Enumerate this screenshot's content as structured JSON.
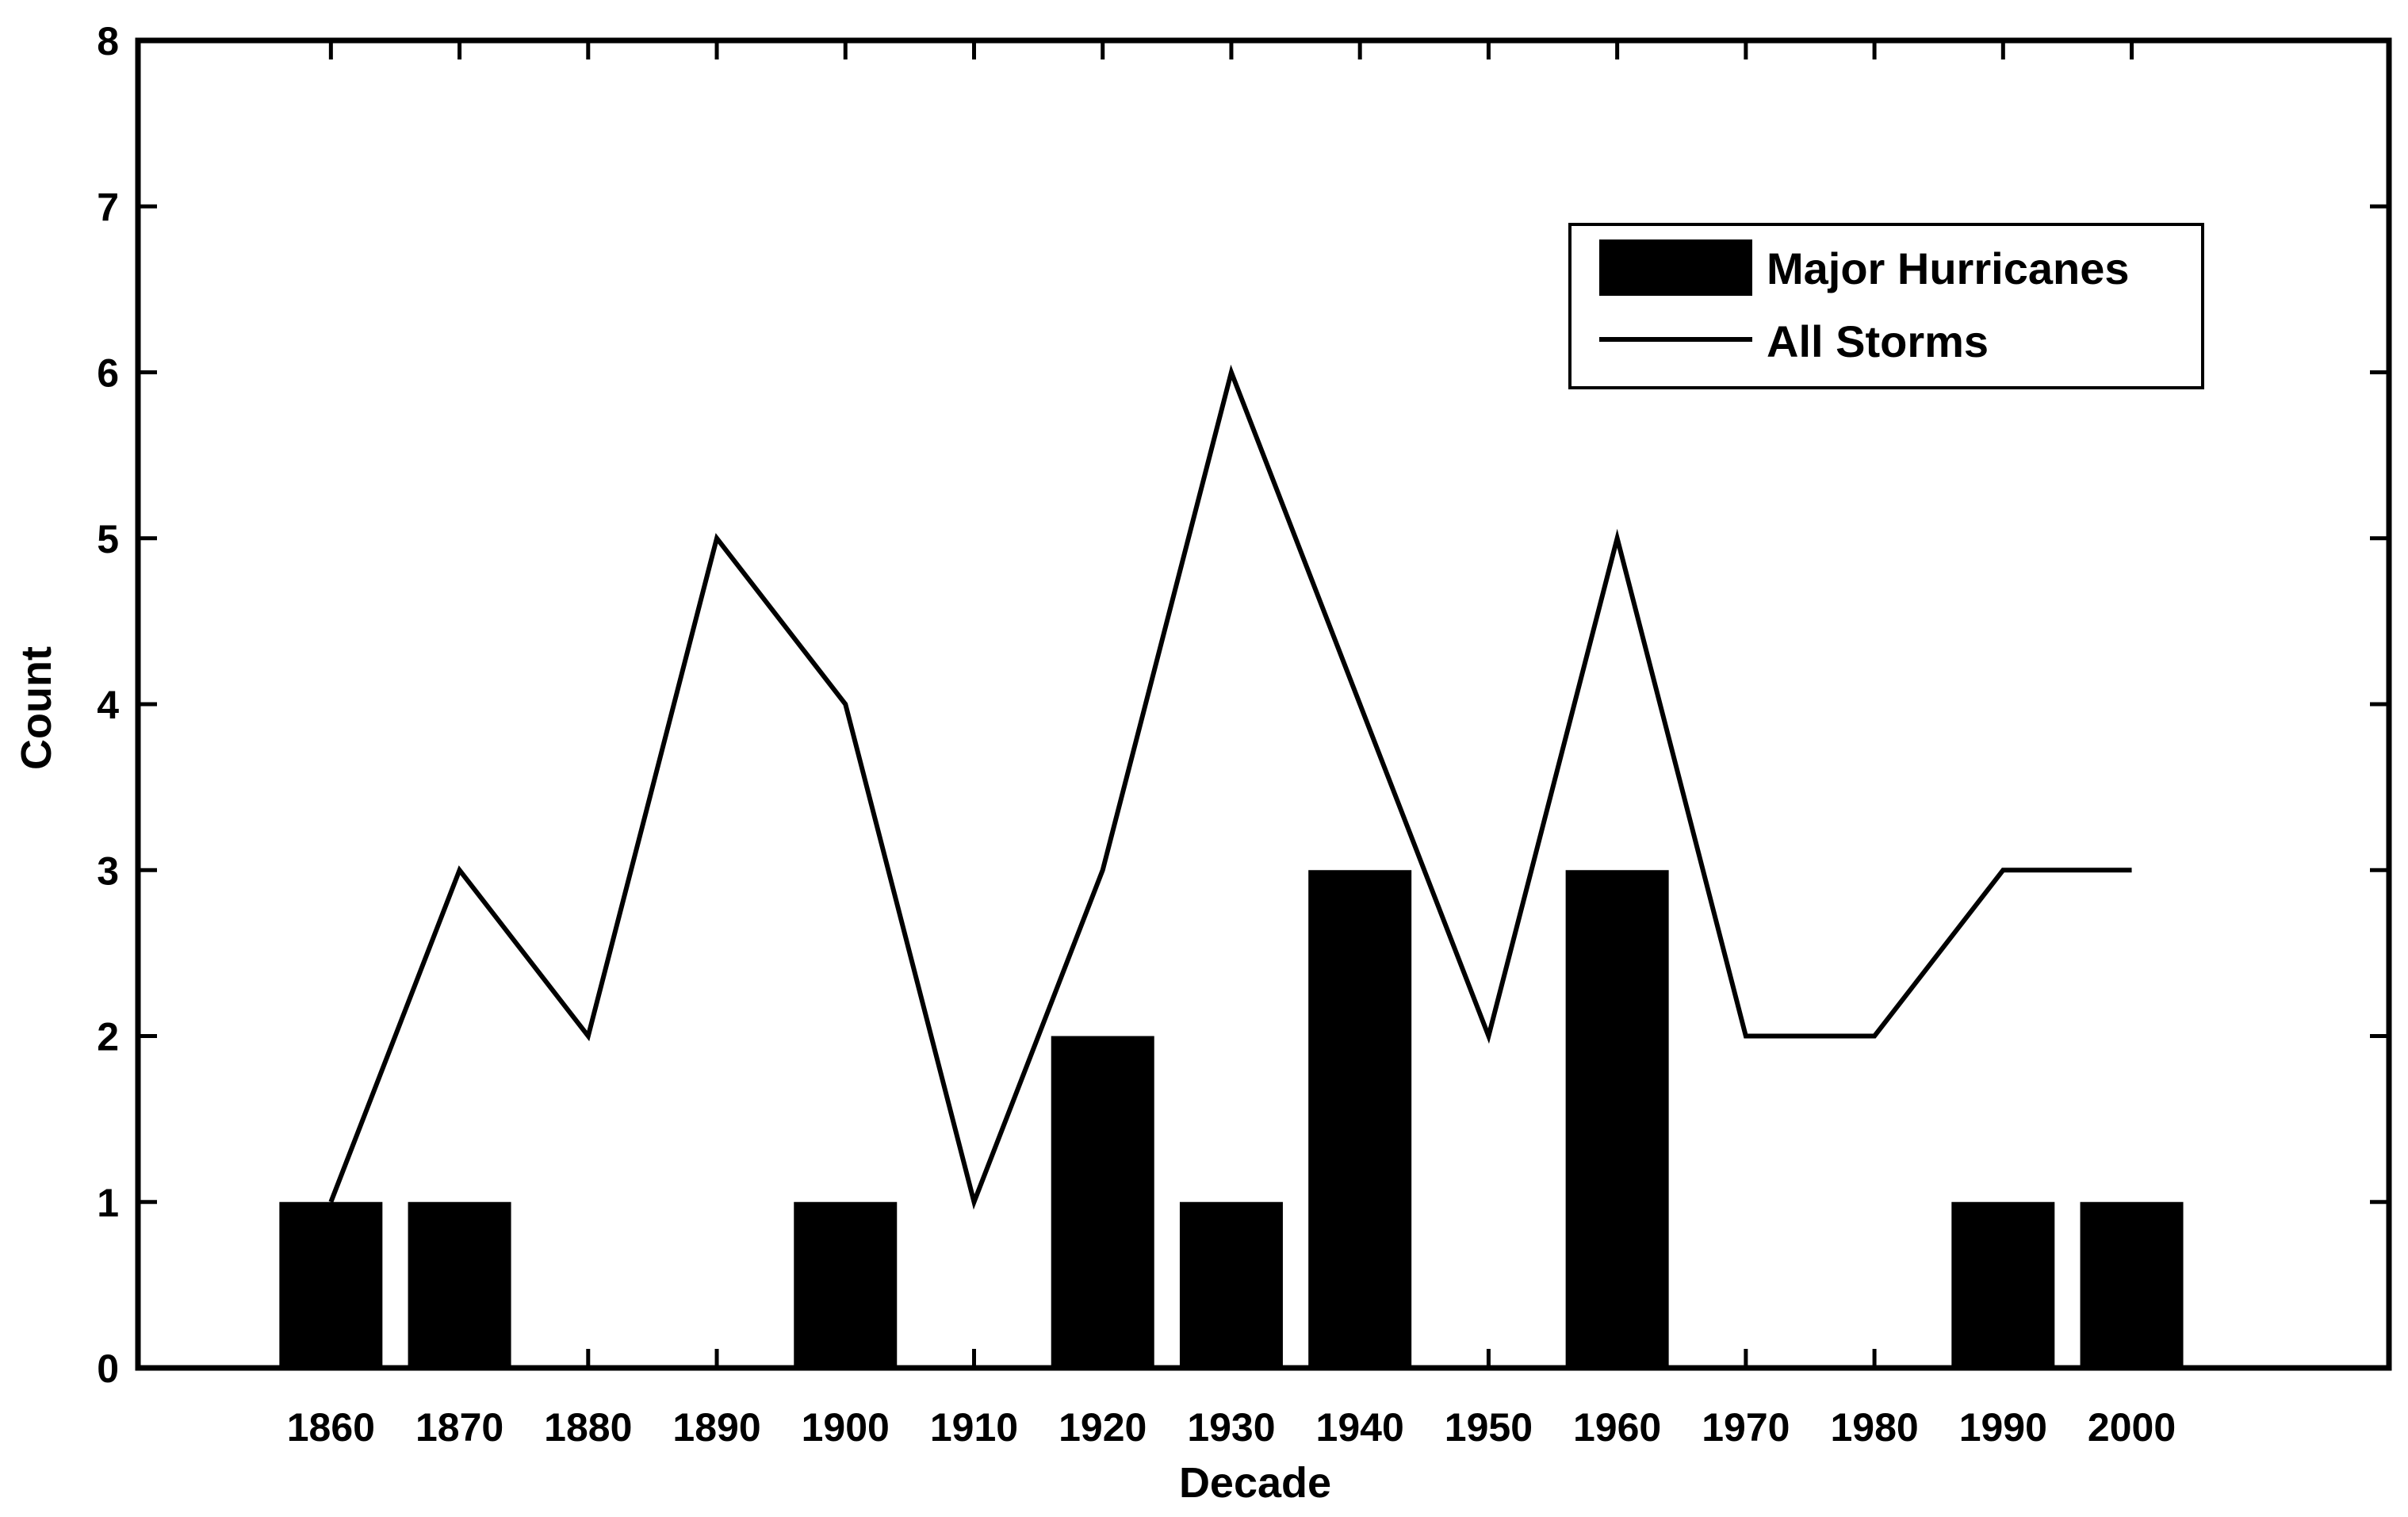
{
  "chart_data": {
    "type": "bar",
    "title": "",
    "xlabel": "Decade",
    "ylabel": "Count",
    "categories": [
      "1860",
      "1870",
      "1880",
      "1890",
      "1900",
      "1910",
      "1920",
      "1930",
      "1940",
      "1950",
      "1960",
      "1970",
      "1980",
      "1990",
      "2000"
    ],
    "series": [
      {
        "name": "Major Hurricanes",
        "type": "bar",
        "values": [
          1,
          1,
          0,
          0,
          1,
          0,
          2,
          1,
          3,
          0,
          3,
          0,
          0,
          1,
          1
        ]
      },
      {
        "name": "All Storms",
        "type": "line",
        "values": [
          1,
          3,
          2,
          5,
          4,
          1,
          3,
          6,
          4,
          2,
          5,
          2,
          2,
          3,
          3
        ]
      }
    ],
    "xlim": [
      1845,
      2020
    ],
    "ylim": [
      0,
      8
    ],
    "yticks": [
      0,
      1,
      2,
      3,
      4,
      5,
      6,
      7,
      8
    ],
    "grid": false,
    "legend_position": "top-right",
    "colors": {
      "bar": "#000000",
      "line": "#000000",
      "axes": "#000000",
      "background": "#ffffff"
    }
  }
}
